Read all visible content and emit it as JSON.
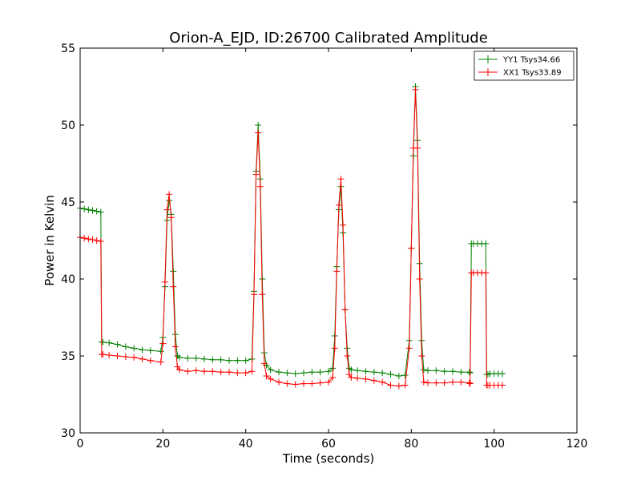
{
  "chart_data": {
    "type": "line",
    "title": "Orion-A_EJD, ID:26700 Calibrated Amplitude",
    "xlabel": "Time (seconds)",
    "ylabel": "Power in Kelvin",
    "xlim": [
      0,
      120
    ],
    "ylim": [
      30,
      55
    ],
    "xticks": [
      "0",
      "20",
      "40",
      "60",
      "80",
      "100",
      "120"
    ],
    "yticks": [
      "30",
      "35",
      "40",
      "45",
      "50",
      "55"
    ],
    "grid": false,
    "legend_position": "top-right",
    "series": [
      {
        "name": "YY1 Tsys34.66",
        "color": "#008000",
        "marker": "plus",
        "x": [
          0,
          1,
          2,
          3,
          4,
          5,
          5.2,
          5.5,
          7,
          9,
          11,
          13,
          15,
          17,
          19.5,
          20,
          20.5,
          21,
          21.5,
          22,
          22.5,
          23,
          23.5,
          24,
          26,
          28,
          30,
          32,
          34,
          36,
          38,
          40,
          41.5,
          42,
          42.5,
          43,
          43.5,
          44,
          44.5,
          45,
          46,
          48,
          50,
          52,
          54,
          56,
          58,
          60,
          61,
          61.5,
          62,
          62.5,
          63,
          63.5,
          64,
          64.5,
          65,
          65.5,
          67,
          69,
          71,
          73,
          75,
          77,
          78.5,
          79.5,
          80,
          80.5,
          81,
          81.5,
          82,
          82.5,
          83,
          84,
          86,
          88,
          90,
          92,
          94,
          94.2,
          94.5,
          95,
          96,
          97,
          98,
          98.2,
          98.5,
          99,
          100,
          101,
          102
        ],
        "values": [
          44.6,
          44.55,
          44.5,
          44.45,
          44.4,
          44.35,
          35.9,
          35.9,
          35.85,
          35.75,
          35.6,
          35.5,
          35.4,
          35.35,
          35.3,
          36.2,
          39.5,
          43.8,
          45.1,
          44.2,
          40.5,
          36.4,
          35.0,
          34.9,
          34.85,
          34.85,
          34.8,
          34.75,
          34.75,
          34.7,
          34.7,
          34.7,
          34.8,
          39.2,
          47.0,
          50.0,
          46.5,
          40.0,
          35.2,
          34.4,
          34.1,
          33.95,
          33.9,
          33.85,
          33.9,
          33.95,
          33.95,
          34.0,
          34.2,
          36.3,
          40.8,
          44.5,
          46.0,
          43.0,
          38.0,
          35.5,
          34.2,
          34.1,
          34.05,
          34.0,
          33.95,
          33.9,
          33.8,
          33.7,
          33.75,
          36.0,
          42.0,
          48.0,
          52.5,
          49.0,
          41.0,
          36.0,
          34.1,
          34.05,
          34.05,
          34.0,
          34.0,
          33.95,
          33.95,
          33.9,
          42.3,
          42.3,
          42.3,
          42.3,
          42.3,
          33.8,
          33.8,
          33.85,
          33.85,
          33.85,
          33.85
        ]
      },
      {
        "name": "XX1 Tsys33.89",
        "color": "#ff0000",
        "marker": "plus",
        "x": [
          0,
          1,
          2,
          3,
          4,
          5,
          5.2,
          5.5,
          7,
          9,
          11,
          13,
          15,
          17,
          19.5,
          20,
          20.5,
          21,
          21.5,
          22,
          22.5,
          23,
          23.5,
          24,
          26,
          28,
          30,
          32,
          34,
          36,
          38,
          40,
          41.5,
          42,
          42.5,
          43,
          43.5,
          44,
          44.5,
          45,
          46,
          48,
          50,
          52,
          54,
          56,
          58,
          60,
          61,
          61.5,
          62,
          62.5,
          63,
          63.5,
          64,
          64.5,
          65,
          65.5,
          67,
          69,
          71,
          73,
          75,
          77,
          78.5,
          79.5,
          80,
          80.5,
          81,
          81.5,
          82,
          82.5,
          83,
          84,
          86,
          88,
          90,
          92,
          94,
          94.2,
          94.5,
          95,
          96,
          97,
          98,
          98.2,
          98.5,
          99,
          100,
          101,
          102
        ],
        "values": [
          42.7,
          42.65,
          42.6,
          42.55,
          42.5,
          42.45,
          35.1,
          35.1,
          35.05,
          35.0,
          34.95,
          34.9,
          34.8,
          34.7,
          34.6,
          35.8,
          39.8,
          44.5,
          45.5,
          44.0,
          39.5,
          35.6,
          34.3,
          34.1,
          34.0,
          34.05,
          34.0,
          34.0,
          33.95,
          33.95,
          33.9,
          33.9,
          34.0,
          39.0,
          46.8,
          49.5,
          46.0,
          39.0,
          34.5,
          33.7,
          33.5,
          33.3,
          33.2,
          33.15,
          33.2,
          33.2,
          33.25,
          33.3,
          33.6,
          35.5,
          40.5,
          44.8,
          46.5,
          43.5,
          38.0,
          35.0,
          33.8,
          33.6,
          33.55,
          33.5,
          33.4,
          33.3,
          33.1,
          33.05,
          33.1,
          35.5,
          42.0,
          48.5,
          52.3,
          48.5,
          40.0,
          35.0,
          33.3,
          33.25,
          33.25,
          33.25,
          33.3,
          33.3,
          33.25,
          33.2,
          40.4,
          40.4,
          40.4,
          40.4,
          40.4,
          33.1,
          33.1,
          33.1,
          33.1,
          33.1,
          33.1
        ]
      }
    ]
  }
}
